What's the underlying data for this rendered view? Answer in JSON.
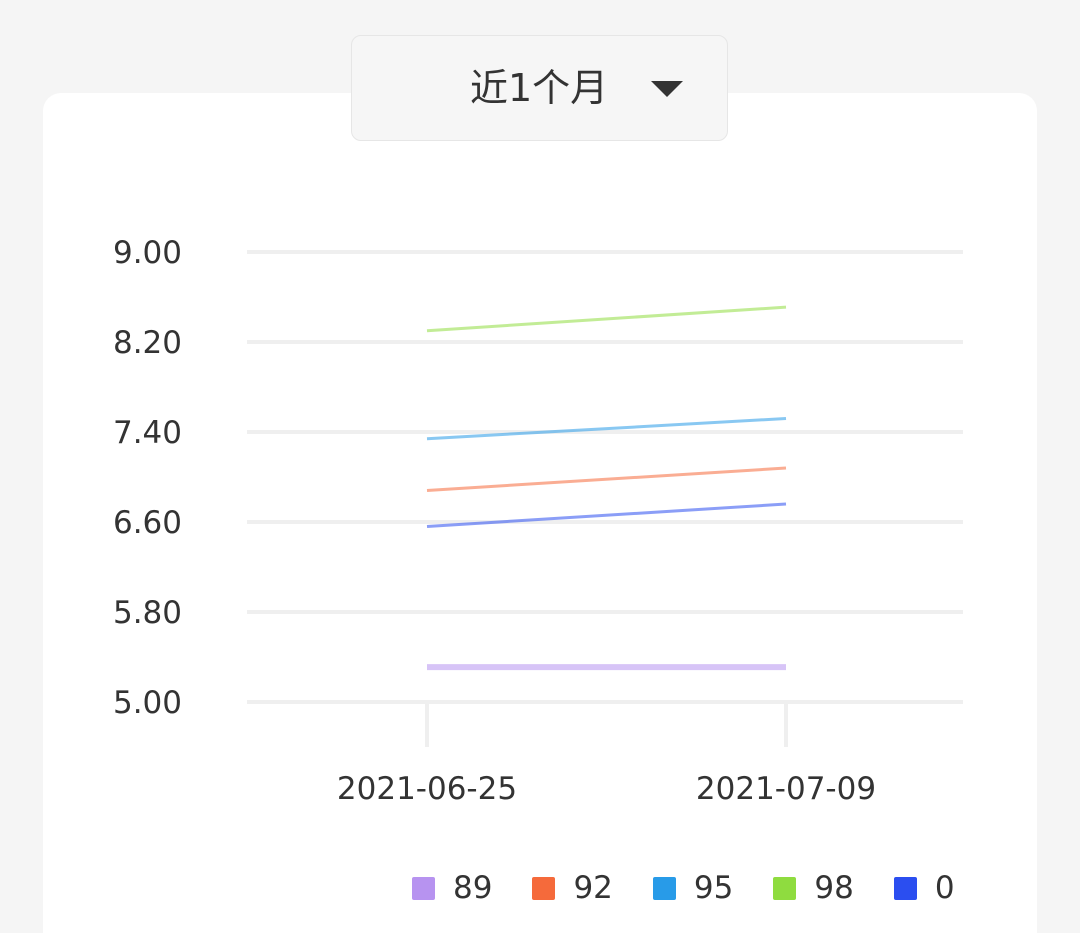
{
  "range_selector": {
    "label": "近1个月",
    "icon": "caret-down-icon"
  },
  "chart_data": {
    "type": "line",
    "x": [
      "2021-06-25",
      "2021-07-09"
    ],
    "y_ticks": [
      "5.00",
      "5.80",
      "6.60",
      "7.40",
      "8.20",
      "9.00"
    ],
    "ylim": [
      5.0,
      9.0
    ],
    "grid": true,
    "legend_position": "bottom-right",
    "series": [
      {
        "name": "89",
        "color": "#b793f0",
        "values": [
          5.31,
          5.31
        ]
      },
      {
        "name": "92",
        "color": "#f56a3b",
        "values": [
          6.88,
          7.08
        ]
      },
      {
        "name": "95",
        "color": "#289be8",
        "values": [
          7.34,
          7.52
        ]
      },
      {
        "name": "98",
        "color": "#8fdc3f",
        "values": [
          8.3,
          8.51
        ]
      },
      {
        "name": "0",
        "color": "#2b4ef0",
        "values": [
          6.56,
          6.76
        ]
      }
    ]
  }
}
